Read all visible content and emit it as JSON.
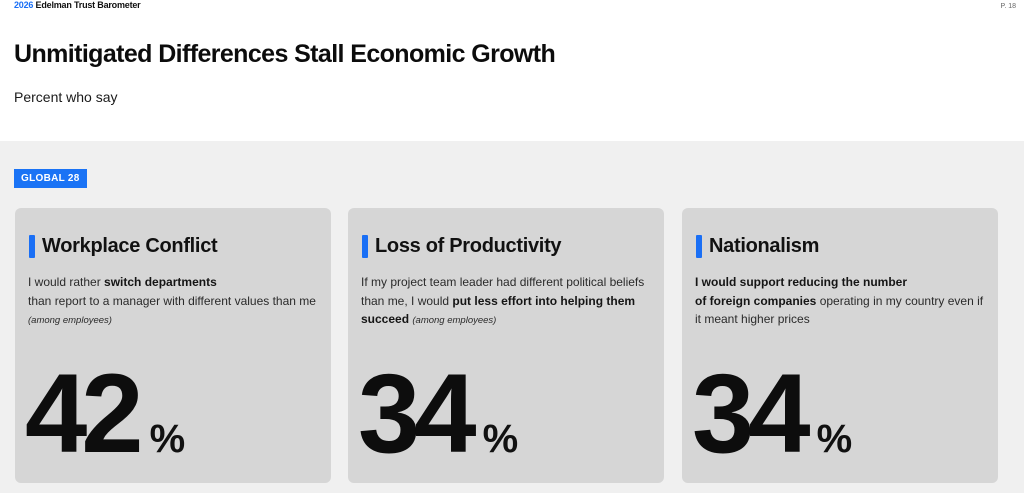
{
  "header": {
    "brand_year": "2026",
    "brand_name": "Edelman Trust Barometer",
    "page": "P. 18"
  },
  "title": "Unmitigated Differences Stall Economic Growth",
  "subtitle": "Percent who say",
  "badge": "GLOBAL 28",
  "accent_color": "#1a6ff5",
  "cards": [
    {
      "heading": "Workplace Conflict",
      "desc_parts": [
        {
          "t": "I would rather ",
          "s": "normal"
        },
        {
          "t": "switch departments",
          "s": "bold"
        },
        {
          "t": "than report to a manager with different values than me ",
          "s": "normal",
          "break_before": true
        },
        {
          "t": "(among employees)",
          "s": "italic"
        }
      ],
      "value": "42",
      "unit": "%"
    },
    {
      "heading": "Loss of Productivity",
      "desc_parts": [
        {
          "t": "If my project team leader had different political beliefs than me, I would ",
          "s": "normal"
        },
        {
          "t": "put less effort into helping them succeed",
          "s": "bold"
        },
        {
          "t": " ",
          "s": "normal"
        },
        {
          "t": "(among employees)",
          "s": "italic"
        }
      ],
      "value": "34",
      "unit": "%"
    },
    {
      "heading": "Nationalism",
      "desc_parts": [
        {
          "t": "I would support reducing the number",
          "s": "bold"
        },
        {
          "t": "of foreign companies",
          "s": "bold",
          "break_before": true
        },
        {
          "t": " operating in my country even if it meant higher prices",
          "s": "normal"
        }
      ],
      "value": "34",
      "unit": "%"
    }
  ]
}
